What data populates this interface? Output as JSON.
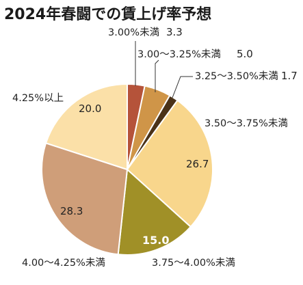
{
  "chart_data": {
    "type": "pie",
    "title": "2024年春闘での賃上げ率予想",
    "start_angle_deg": 0,
    "direction": "clockwise",
    "slices": [
      {
        "label": "3.00%未満",
        "value": 3.3,
        "value_text": "3.3",
        "color": "#b5533a"
      },
      {
        "label": "3.00～3.25%未満",
        "value": 5.0,
        "value_text": "5.0",
        "color": "#cf9548"
      },
      {
        "label": "3.25～3.50%未満",
        "value": 1.7,
        "value_text": "1.7",
        "color": "#4a3218"
      },
      {
        "label": "3.50～3.75%未満",
        "value": 26.7,
        "value_text": "26.7",
        "color": "#f8d68c"
      },
      {
        "label": "3.75～4.00%未満",
        "value": 15.0,
        "value_text": "15.0",
        "color": "#a09027"
      },
      {
        "label": "4.00～4.25%未満",
        "value": 28.3,
        "value_text": "28.3",
        "color": "#cf9e79"
      },
      {
        "label": "4.25%以上",
        "value": 20.0,
        "value_text": "20.0",
        "color": "#fbe0a8"
      }
    ]
  }
}
